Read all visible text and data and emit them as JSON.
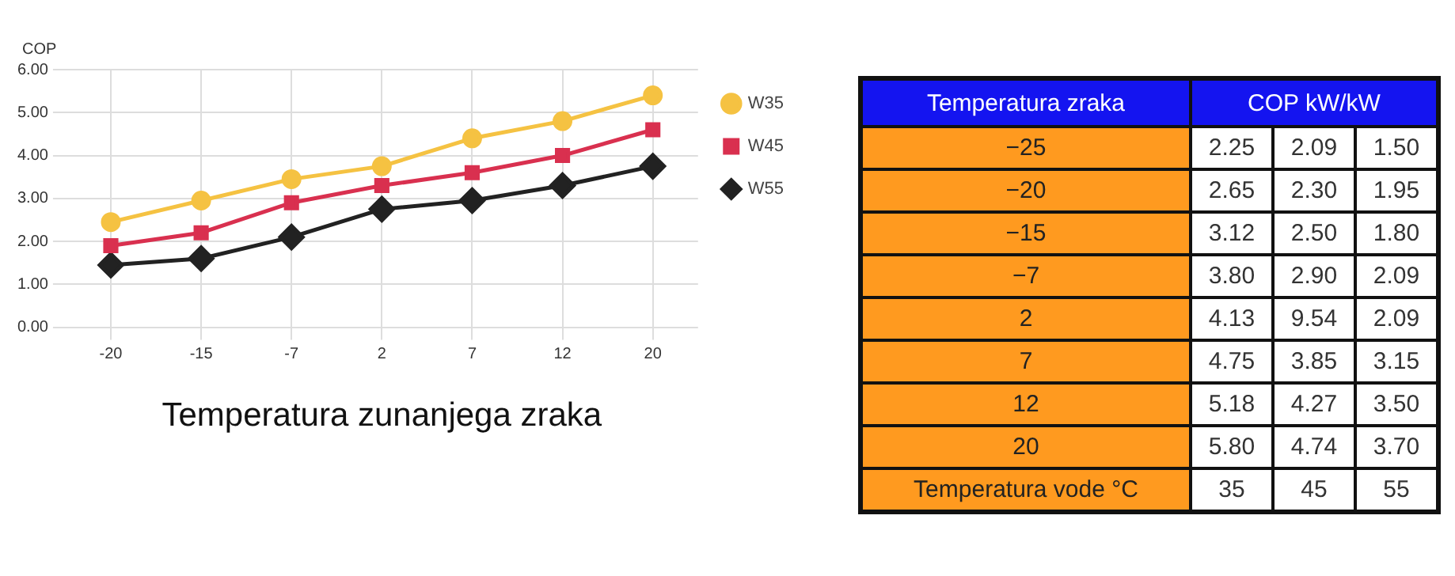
{
  "chart_data": [
    {
      "type": "line",
      "ylabel": "COP",
      "xlabel": "Temperatura zunanjega zraka",
      "categories": [
        "-20",
        "-15",
        "-7",
        "2",
        "7",
        "12",
        "20"
      ],
      "series": [
        {
          "name": "W35",
          "color": "#f5c242",
          "marker": "circle",
          "values": [
            2.45,
            2.95,
            3.45,
            3.75,
            4.4,
            4.8,
            5.4
          ]
        },
        {
          "name": "W45",
          "color": "#d9304f",
          "marker": "square",
          "values": [
            1.9,
            2.2,
            2.9,
            3.3,
            3.6,
            4.0,
            4.6
          ]
        },
        {
          "name": "W55",
          "color": "#222222",
          "marker": "diamond",
          "values": [
            1.45,
            1.6,
            2.1,
            2.75,
            2.95,
            3.3,
            3.75
          ]
        }
      ],
      "ylim": [
        0,
        6
      ],
      "yticks": [
        {
          "value": 0,
          "label": "0.00"
        },
        {
          "value": 1,
          "label": "1.00"
        },
        {
          "value": 2,
          "label": "2.00"
        },
        {
          "value": 3,
          "label": "3.00"
        },
        {
          "value": 4,
          "label": "4.00"
        },
        {
          "value": 5,
          "label": "5.00"
        },
        {
          "value": 6,
          "label": "6.00"
        }
      ],
      "grid": true,
      "legend": "top right",
      "line_style": "solid"
    },
    {
      "type": "heatmap",
      "title": "COP kW/kW",
      "ylabel": "Temperatura zraka",
      "xlabel": "Temperatura vode °C",
      "categories": [
        "35",
        "45",
        "55"
      ],
      "y_categories": [
        "−25",
        "−20",
        "−15",
        "−7",
        "2",
        "7",
        "12",
        "20"
      ],
      "cells": [
        [
          2.25,
          2.09,
          1.5
        ],
        [
          2.65,
          2.3,
          1.95
        ],
        [
          3.12,
          2.5,
          1.8
        ],
        [
          3.8,
          2.9,
          2.09
        ],
        [
          4.13,
          9.54,
          2.09
        ],
        [
          4.75,
          3.85,
          3.15
        ],
        [
          5.18,
          4.27,
          3.5
        ],
        [
          5.8,
          4.74,
          3.7
        ]
      ],
      "cell_labels": [
        [
          "2.25",
          "2.09",
          "1.50"
        ],
        [
          "2.65",
          "2.30",
          "1.95"
        ],
        [
          "3.12",
          "2.50",
          "1.80"
        ],
        [
          "3.80",
          "2.90",
          "2.09"
        ],
        [
          "4.13",
          "9.54",
          "2.09"
        ],
        [
          "4.75",
          "3.85",
          "3.15"
        ],
        [
          "5.18",
          "4.27",
          "3.50"
        ],
        [
          "5.80",
          "4.74",
          "3.70"
        ]
      ]
    }
  ]
}
